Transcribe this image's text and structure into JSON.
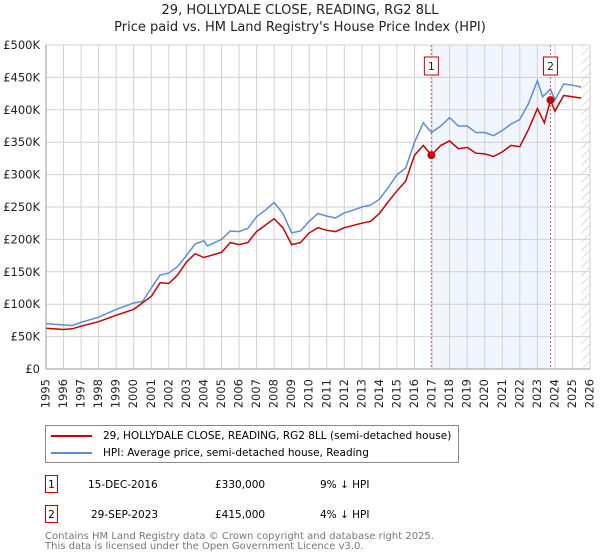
{
  "title_line1": "29, HOLLYDALE CLOSE, READING, RG2 8LL",
  "title_line2": "Price paid vs. HM Land Registry's House Price Index (HPI)",
  "chart_data": {
    "type": "line",
    "title": "Price paid vs. HM Land Registry's House Price Index (HPI)",
    "xlim": [
      1995,
      2026
    ],
    "ylim": [
      0,
      500000
    ],
    "x_ticks": [
      "1995",
      "1996",
      "1997",
      "1998",
      "1999",
      "2000",
      "2001",
      "2002",
      "2003",
      "2004",
      "2005",
      "2006",
      "2007",
      "2008",
      "2009",
      "2010",
      "2011",
      "2012",
      "2013",
      "2014",
      "2015",
      "2016",
      "2017",
      "2018",
      "2019",
      "2020",
      "2021",
      "2022",
      "2023",
      "2024",
      "2025",
      "2026"
    ],
    "y_ticks": [
      {
        "v": 0,
        "label": "£0"
      },
      {
        "v": 50000,
        "label": "£50K"
      },
      {
        "v": 100000,
        "label": "£100K"
      },
      {
        "v": 150000,
        "label": "£150K"
      },
      {
        "v": 200000,
        "label": "£200K"
      },
      {
        "v": 250000,
        "label": "£250K"
      },
      {
        "v": 300000,
        "label": "£300K"
      },
      {
        "v": 350000,
        "label": "£350K"
      },
      {
        "v": 400000,
        "label": "£400K"
      },
      {
        "v": 450000,
        "label": "£450K"
      },
      {
        "v": 500000,
        "label": "£500K"
      }
    ],
    "grid": true,
    "shaded_range": [
      2016.96,
      2023.75
    ],
    "forecast_hatch_from": 2025.5,
    "series": [
      {
        "name": "29, HOLLYDALE CLOSE, READING, RG2 8LL (semi-detached house)",
        "color": "#cc0000",
        "x": [
          1995,
          1996,
          1996.5,
          1997,
          1998,
          1999,
          2000,
          2001,
          2001.5,
          2002,
          2002.5,
          2003,
          2003.5,
          2004,
          2005,
          2005.5,
          2006,
          2006.5,
          2007,
          2008,
          2008.5,
          2009,
          2009.5,
          2010,
          2010.5,
          2011,
          2011.5,
          2012,
          2013,
          2013.5,
          2014,
          2014.5,
          2015,
          2015.5,
          2016,
          2016.5,
          2016.96,
          2017.5,
          2018,
          2018.5,
          2019,
          2019.5,
          2020,
          2020.5,
          2021,
          2021.5,
          2022,
          2022.5,
          2023,
          2023.4,
          2023.75,
          2024,
          2024.5,
          2025,
          2025.5
        ],
        "y": [
          63000,
          61000,
          62000,
          66000,
          73000,
          83000,
          92000,
          112000,
          133000,
          132000,
          145000,
          165000,
          178000,
          172000,
          180000,
          195000,
          192000,
          195000,
          212000,
          232000,
          218000,
          192000,
          195000,
          210000,
          218000,
          214000,
          212000,
          218000,
          225000,
          228000,
          240000,
          258000,
          275000,
          290000,
          330000,
          345000,
          330000,
          345000,
          352000,
          340000,
          342000,
          333000,
          332000,
          328000,
          335000,
          345000,
          343000,
          370000,
          402000,
          380000,
          415000,
          398000,
          422000,
          420000,
          418000
        ]
      },
      {
        "name": "HPI: Average price, semi-detached house, Reading",
        "color": "#5b8fd4",
        "x": [
          1995,
          1996,
          1996.5,
          1997,
          1998,
          1999,
          2000,
          2000.5,
          2001,
          2001.5,
          2002,
          2002.5,
          2003,
          2003.5,
          2004,
          2004.2,
          2005,
          2005.5,
          2006,
          2006.5,
          2007,
          2007.5,
          2008,
          2008.5,
          2009,
          2009.5,
          2010,
          2010.5,
          2011,
          2011.5,
          2012,
          2012.5,
          2013,
          2013.5,
          2014,
          2014.5,
          2015,
          2015.5,
          2016,
          2016.5,
          2016.96,
          2017.5,
          2018,
          2018.5,
          2019,
          2019.5,
          2020,
          2020.5,
          2021,
          2021.5,
          2022,
          2022.5,
          2023,
          2023.3,
          2023.75,
          2024,
          2024.5,
          2025,
          2025.5
        ],
        "y": [
          70000,
          68000,
          67000,
          72000,
          80000,
          92000,
          102000,
          104000,
          125000,
          145000,
          148000,
          158000,
          175000,
          193000,
          198000,
          190000,
          200000,
          213000,
          212000,
          217000,
          235000,
          245000,
          257000,
          240000,
          210000,
          213000,
          228000,
          240000,
          236000,
          233000,
          241000,
          245000,
          250000,
          253000,
          262000,
          280000,
          300000,
          310000,
          350000,
          380000,
          365000,
          375000,
          388000,
          375000,
          375000,
          365000,
          365000,
          360000,
          368000,
          378000,
          385000,
          410000,
          445000,
          420000,
          432000,
          415000,
          440000,
          438000,
          435000
        ]
      }
    ],
    "annotations": [
      {
        "label": "1",
        "x": 2016.96,
        "y": 330000
      },
      {
        "label": "2",
        "x": 2023.75,
        "y": 415000
      }
    ]
  },
  "legend": {
    "property": "29, HOLLYDALE CLOSE, READING, RG2 8LL (semi-detached house)",
    "hpi": "HPI: Average price, semi-detached house, Reading"
  },
  "transactions": [
    {
      "num": "1",
      "date": "15-DEC-2016",
      "price": "£330,000",
      "hpi": "9% ↓ HPI"
    },
    {
      "num": "2",
      "date": "29-SEP-2023",
      "price": "£415,000",
      "hpi": "4% ↓ HPI"
    }
  ],
  "footer_line1": "Contains HM Land Registry data © Crown copyright and database right 2025.",
  "footer_line2": "This data is licensed under the Open Government Licence v3.0."
}
